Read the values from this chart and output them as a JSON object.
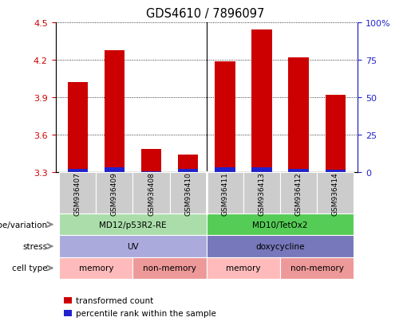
{
  "title": "GDS4610 / 7896097",
  "samples": [
    "GSM936407",
    "GSM936409",
    "GSM936408",
    "GSM936410",
    "GSM936411",
    "GSM936413",
    "GSM936412",
    "GSM936414"
  ],
  "red_values": [
    4.02,
    4.28,
    3.49,
    3.44,
    4.19,
    4.44,
    4.22,
    3.92
  ],
  "blue_values": [
    3.33,
    3.34,
    3.31,
    3.33,
    3.34,
    3.34,
    3.33,
    3.32
  ],
  "bar_bottom": 3.3,
  "ylim": [
    3.3,
    4.5
  ],
  "yticks_left": [
    3.3,
    3.6,
    3.9,
    4.2,
    4.5
  ],
  "yticks_right": [
    0,
    25,
    50,
    75,
    100
  ],
  "ytick_labels_right": [
    "0",
    "25",
    "50",
    "75",
    "100%"
  ],
  "red_color": "#CC0000",
  "blue_color": "#2222CC",
  "bar_width": 0.55,
  "annotation_rows": [
    {
      "label": "genotype/variation",
      "groups": [
        {
          "text": "MD12/p53R2-RE",
          "start": 0,
          "end": 3,
          "color": "#AADDAA"
        },
        {
          "text": "MD10/TetOx2",
          "start": 4,
          "end": 7,
          "color": "#55CC55"
        }
      ]
    },
    {
      "label": "stress",
      "groups": [
        {
          "text": "UV",
          "start": 0,
          "end": 3,
          "color": "#AAAADD"
        },
        {
          "text": "doxycycline",
          "start": 4,
          "end": 7,
          "color": "#7777BB"
        }
      ]
    },
    {
      "label": "cell type",
      "groups": [
        {
          "text": "memory",
          "start": 0,
          "end": 1,
          "color": "#FFBBBB"
        },
        {
          "text": "non-memory",
          "start": 2,
          "end": 3,
          "color": "#EE9999"
        },
        {
          "text": "memory",
          "start": 4,
          "end": 5,
          "color": "#FFBBBB"
        },
        {
          "text": "non-memory",
          "start": 6,
          "end": 7,
          "color": "#EE9999"
        }
      ]
    }
  ],
  "legend_items": [
    {
      "color": "#CC0000",
      "label": "transformed count"
    },
    {
      "color": "#2222CC",
      "label": "percentile rank within the sample"
    }
  ],
  "left_color": "#CC0000",
  "right_color": "#2222CC",
  "xticklabel_bg": "#CCCCCC",
  "separator_col": 3,
  "fig_width": 5.15,
  "fig_height": 4.14,
  "dpi": 100
}
